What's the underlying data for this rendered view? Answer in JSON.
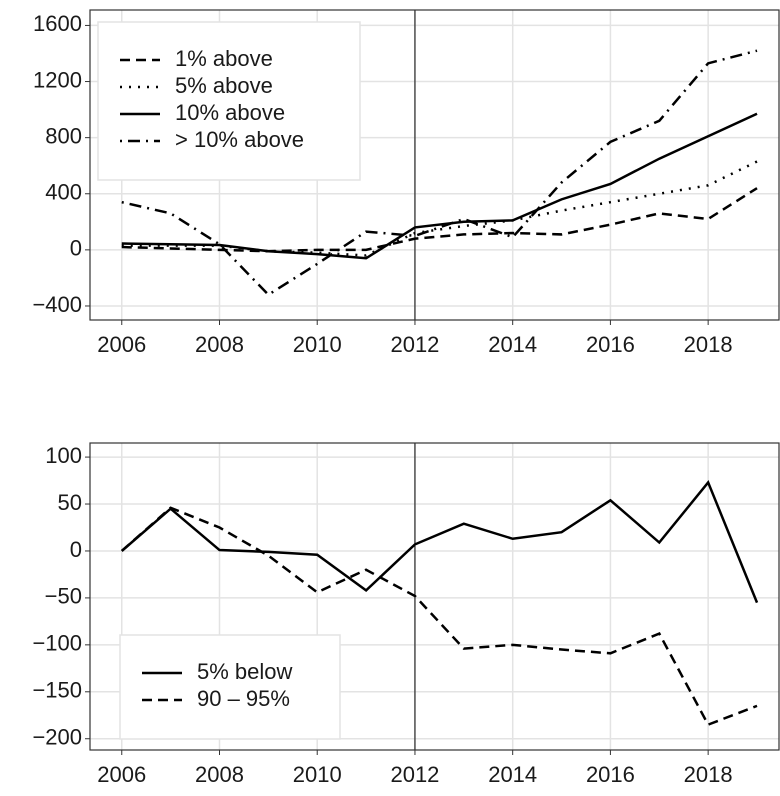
{
  "chart_data": [
    {
      "type": "line",
      "x": [
        2006,
        2007,
        2008,
        2009,
        2010,
        2011,
        2012,
        2013,
        2014,
        2015,
        2016,
        2017,
        2018,
        2019
      ],
      "series": [
        {
          "name": "1% above",
          "color": "#000000",
          "dash": "dashed",
          "values": [
            20,
            10,
            0,
            -10,
            0,
            0,
            80,
            110,
            120,
            110,
            180,
            260,
            220,
            440
          ]
        },
        {
          "name": "5% above",
          "color": "#000000",
          "dash": "dotted",
          "values": [
            30,
            30,
            30,
            -10,
            -20,
            -40,
            120,
            170,
            210,
            280,
            340,
            400,
            460,
            630
          ]
        },
        {
          "name": "10% above",
          "color": "#000000",
          "dash": "solid",
          "values": [
            45,
            40,
            35,
            -10,
            -30,
            -60,
            160,
            200,
            210,
            360,
            470,
            650,
            810,
            970
          ]
        },
        {
          "name": "> 10% above",
          "color": "#000000",
          "dash": "dotdash",
          "values": [
            340,
            260,
            40,
            -320,
            -100,
            130,
            100,
            220,
            90,
            480,
            770,
            920,
            1330,
            1420
          ]
        }
      ],
      "xlim": [
        2005.35,
        2019.45
      ],
      "xticks": [
        2006,
        2008,
        2010,
        2012,
        2014,
        2016,
        2018
      ],
      "ylim": [
        -500,
        1710
      ],
      "yticks": [
        {
          "value": -400,
          "label": "−400"
        },
        0,
        400,
        800,
        1200,
        1600
      ],
      "vline": 2012,
      "grid": true,
      "legend": "top-left"
    },
    {
      "type": "line",
      "x": [
        2006,
        2007,
        2008,
        2009,
        2010,
        2011,
        2012,
        2013,
        2014,
        2015,
        2016,
        2017,
        2018,
        2019
      ],
      "series": [
        {
          "name": "5% below",
          "color": "#000000",
          "dash": "solid",
          "values": [
            0,
            45,
            1,
            -1,
            -4,
            -42,
            7,
            29,
            13,
            20,
            54,
            9,
            73,
            -55
          ]
        },
        {
          "name": "90 – 95%",
          "color": "#000000",
          "dash": "dashed",
          "values": [
            0,
            46,
            25,
            -5,
            -44,
            -20,
            -48,
            -104,
            -100,
            -105,
            -109,
            -88,
            -185,
            -165
          ]
        }
      ],
      "xlim": [
        2005.35,
        2019.45
      ],
      "xticks": [
        2006,
        2008,
        2010,
        2012,
        2014,
        2016,
        2018
      ],
      "ylim": [
        -212,
        115
      ],
      "yticks": [
        {
          "value": -200,
          "label": "−200"
        },
        {
          "value": -150,
          "label": "−150"
        },
        {
          "value": -100,
          "label": "−100"
        },
        {
          "value": -50,
          "label": "−50"
        },
        0,
        50,
        100
      ],
      "vline": 2012,
      "grid": true,
      "legend": "bottom-left"
    }
  ]
}
